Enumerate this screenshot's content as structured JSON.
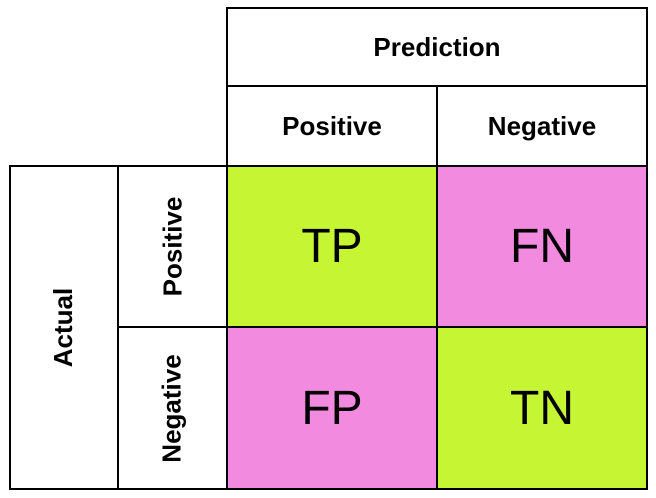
{
  "matrix": {
    "prediction_label": "Prediction",
    "actual_label": "Actual",
    "pred_positive": "Positive",
    "pred_negative": "Negative",
    "act_positive": "Positive",
    "act_negative": "Negative",
    "tp": "TP",
    "fn": "FN",
    "fp": "FP",
    "tn": "TN",
    "colors": {
      "correct": "#c6f533",
      "incorrect": "#f28adf"
    }
  }
}
